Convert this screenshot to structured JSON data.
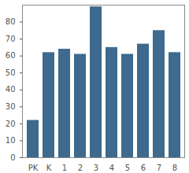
{
  "chart_data": {
    "type": "bar",
    "categories": [
      "PK",
      "K",
      "1",
      "2",
      "3",
      "4",
      "5",
      "6",
      "7",
      "8"
    ],
    "values": [
      22,
      62,
      64,
      61,
      89,
      65,
      61,
      67,
      75,
      62
    ],
    "color": "#3d6a8e",
    "ylim": [
      0,
      90
    ],
    "yticks": [
      0,
      10,
      20,
      30,
      40,
      50,
      60,
      70,
      80
    ],
    "grid": false
  }
}
